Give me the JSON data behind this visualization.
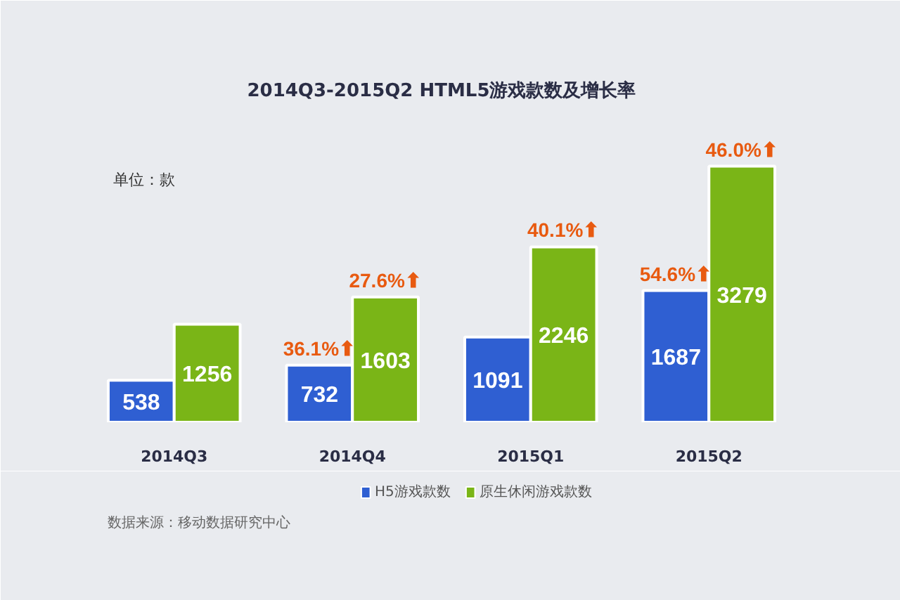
{
  "chart_data": {
    "type": "bar",
    "title": "2014Q3-2015Q2 HTML5游戏款数及增长率",
    "categories": [
      "2014Q3",
      "2014Q4",
      "2015Q1",
      "2015Q2"
    ],
    "series": [
      {
        "name": "H5游戏款数",
        "color": "#2f5fd2",
        "values": [
          538,
          732,
          1091,
          1687
        ]
      },
      {
        "name": "原生休闲游戏款数",
        "color": "#7ab517",
        "values": [
          1256,
          1603,
          2246,
          3279
        ]
      }
    ],
    "data_labels": true,
    "legend": "bottom",
    "annotations": [
      "单位：款",
      {
        "text": "36.1%⬆",
        "x": "2014Q4",
        "y": 732
      },
      {
        "text": "27.6%⬆",
        "x": "2014Q4",
        "y": 1603
      },
      {
        "text": "40.1%⬆",
        "x": "2015Q1",
        "y": 2246
      },
      {
        "text": "54.6%⬆",
        "x": "2015Q2",
        "y": 1687
      },
      {
        "text": "46.0%⬆",
        "x": "2015Q2",
        "y": 3279
      },
      "数据来源：移动数据研究中心"
    ]
  }
}
